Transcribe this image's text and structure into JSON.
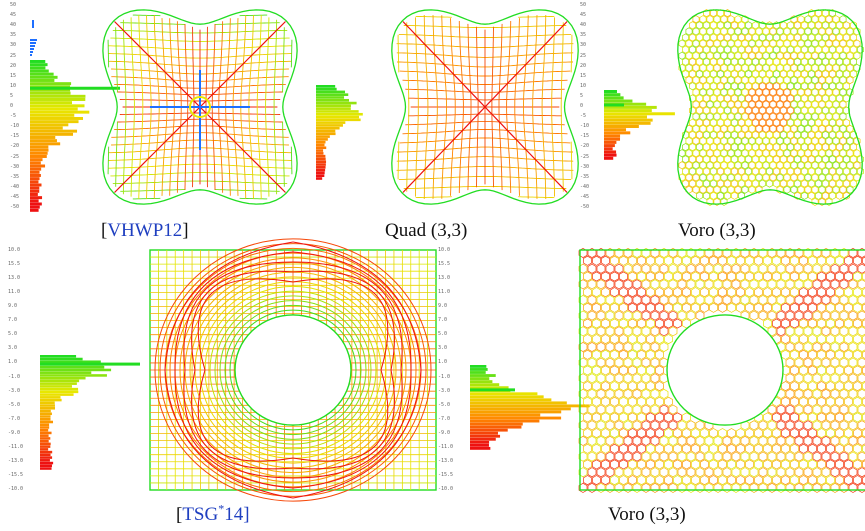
{
  "figure": {
    "top_row": [
      {
        "id": "vhwp12",
        "caption_prefix": "[",
        "caption_cite": "VHWP12",
        "caption_suffix": "]",
        "shape": "star",
        "style": "quad-dense-field"
      },
      {
        "id": "quad33",
        "caption_prefix": "",
        "caption_cite": "",
        "caption_suffix": "Quad (3,3)",
        "shape": "star",
        "style": "quad"
      },
      {
        "id": "voro33_top",
        "caption_prefix": "",
        "caption_cite": "",
        "caption_suffix": "Voro (3,3)",
        "shape": "star",
        "style": "voronoi"
      }
    ],
    "bottom_row": [
      {
        "id": "tsg14",
        "caption_prefix": "[",
        "caption_cite": "TSG",
        "caption_sup": "*",
        "caption_after": "14]",
        "shape": "rect-hole",
        "style": "quad"
      },
      {
        "id": "voro33_bottom",
        "caption_prefix": "",
        "caption_cite": "",
        "caption_suffix": "Voro (3,3)",
        "shape": "rect-hole",
        "style": "voronoi"
      }
    ],
    "colors": {
      "good": "#22dd22",
      "mid": "#e8e800",
      "warn": "#ff8800",
      "bad": "#ee1111",
      "singular": "#1e6fff",
      "citation": "#1f3fc0"
    },
    "top_scale_ticks": [
      "50",
      "45",
      "40",
      "35",
      "30",
      "25",
      "20",
      "15",
      "10",
      "5",
      "0",
      "-5",
      "-10",
      "-15",
      "-20",
      "-25",
      "-30",
      "-35",
      "-40",
      "-45",
      "-50"
    ],
    "bottom_scale_ticks": [
      "10.0",
      "15.5",
      "13.0",
      "11.0",
      "9.0",
      "7.0",
      "5.0",
      "3.0",
      "1.0",
      "-1.0",
      "-3.0",
      "-5.0",
      "-7.0",
      "-9.0",
      "-11.0",
      "-13.0",
      "-15.5",
      "-10.0"
    ]
  }
}
